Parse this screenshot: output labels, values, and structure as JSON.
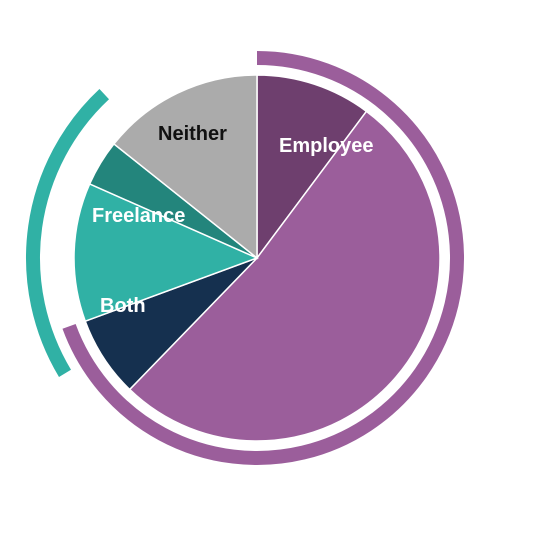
{
  "chart_data": {
    "type": "pie",
    "title": "",
    "slices": [
      {
        "label": "Employee",
        "value": 10,
        "color": "#6e3f6e",
        "label_color": "#ffffff"
      },
      {
        "label": "",
        "value": 51,
        "color": "#9b5e9b",
        "label_color": "#ffffff"
      },
      {
        "label": "Both",
        "value": 7,
        "color": "#15304f",
        "label_color": "#ffffff"
      },
      {
        "label": "Freelance",
        "value": 12,
        "color": "#30b1a5",
        "label_color": "#ffffff"
      },
      {
        "label": "",
        "value": 4,
        "color": "#23857c",
        "label_color": "#ffffff"
      },
      {
        "label": "Neither",
        "value": 14,
        "color": "#ababab",
        "label_color": "#111111"
      }
    ],
    "outer_arcs": [
      {
        "group": "employee",
        "color": "#9b5e9b"
      },
      {
        "group": "freelance",
        "color": "#30b1a5"
      }
    ]
  }
}
